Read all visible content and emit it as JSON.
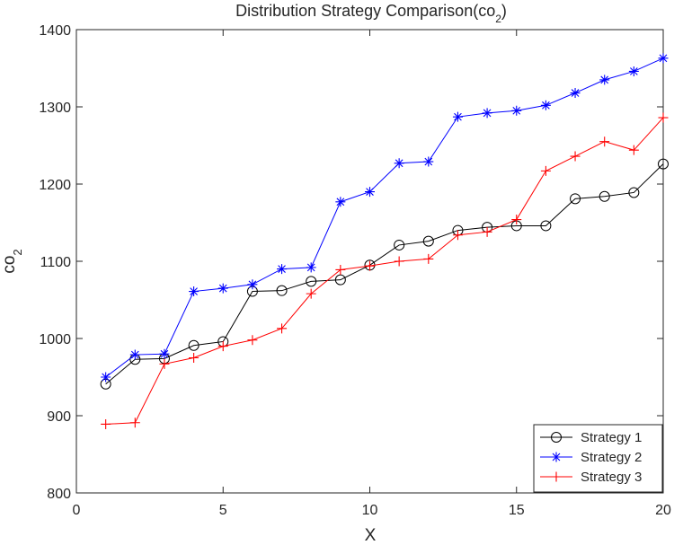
{
  "chart_data": {
    "type": "line",
    "title": "Distribution Strategy Comparison(co",
    "title_subscript": "2",
    "title_suffix": ")",
    "xlabel": "X",
    "ylabel": "co",
    "ylabel_subscript": "2",
    "xlim": [
      0,
      20
    ],
    "ylim": [
      800,
      1400
    ],
    "xticks": [
      0,
      5,
      10,
      15,
      20
    ],
    "yticks": [
      800,
      900,
      1000,
      1100,
      1200,
      1300,
      1400
    ],
    "grid": false,
    "legend_position": "bottom-right",
    "x": [
      1,
      2,
      3,
      4,
      5,
      6,
      7,
      8,
      9,
      10,
      11,
      12,
      13,
      14,
      15,
      16,
      17,
      18,
      19,
      20
    ],
    "series": [
      {
        "name": "Strategy 1",
        "color": "#000000",
        "marker": "circle",
        "values": [
          941,
          973,
          974,
          991,
          996,
          1061,
          1062,
          1074,
          1076,
          1095,
          1121,
          1126,
          1140,
          1144,
          1146,
          1146,
          1181,
          1184,
          1189,
          1226
        ]
      },
      {
        "name": "Strategy 2",
        "color": "#0000ff",
        "marker": "asterisk",
        "values": [
          950,
          979,
          980,
          1061,
          1065,
          1070,
          1090,
          1092,
          1177,
          1190,
          1227,
          1229,
          1287,
          1292,
          1295,
          1302,
          1318,
          1335,
          1346,
          1363
        ]
      },
      {
        "name": "Strategy 3",
        "color": "#ff0000",
        "marker": "plus",
        "values": [
          889,
          891,
          967,
          975,
          990,
          998,
          1013,
          1058,
          1089,
          1094,
          1100,
          1103,
          1134,
          1138,
          1154,
          1217,
          1236,
          1255,
          1244,
          1286
        ]
      }
    ]
  }
}
